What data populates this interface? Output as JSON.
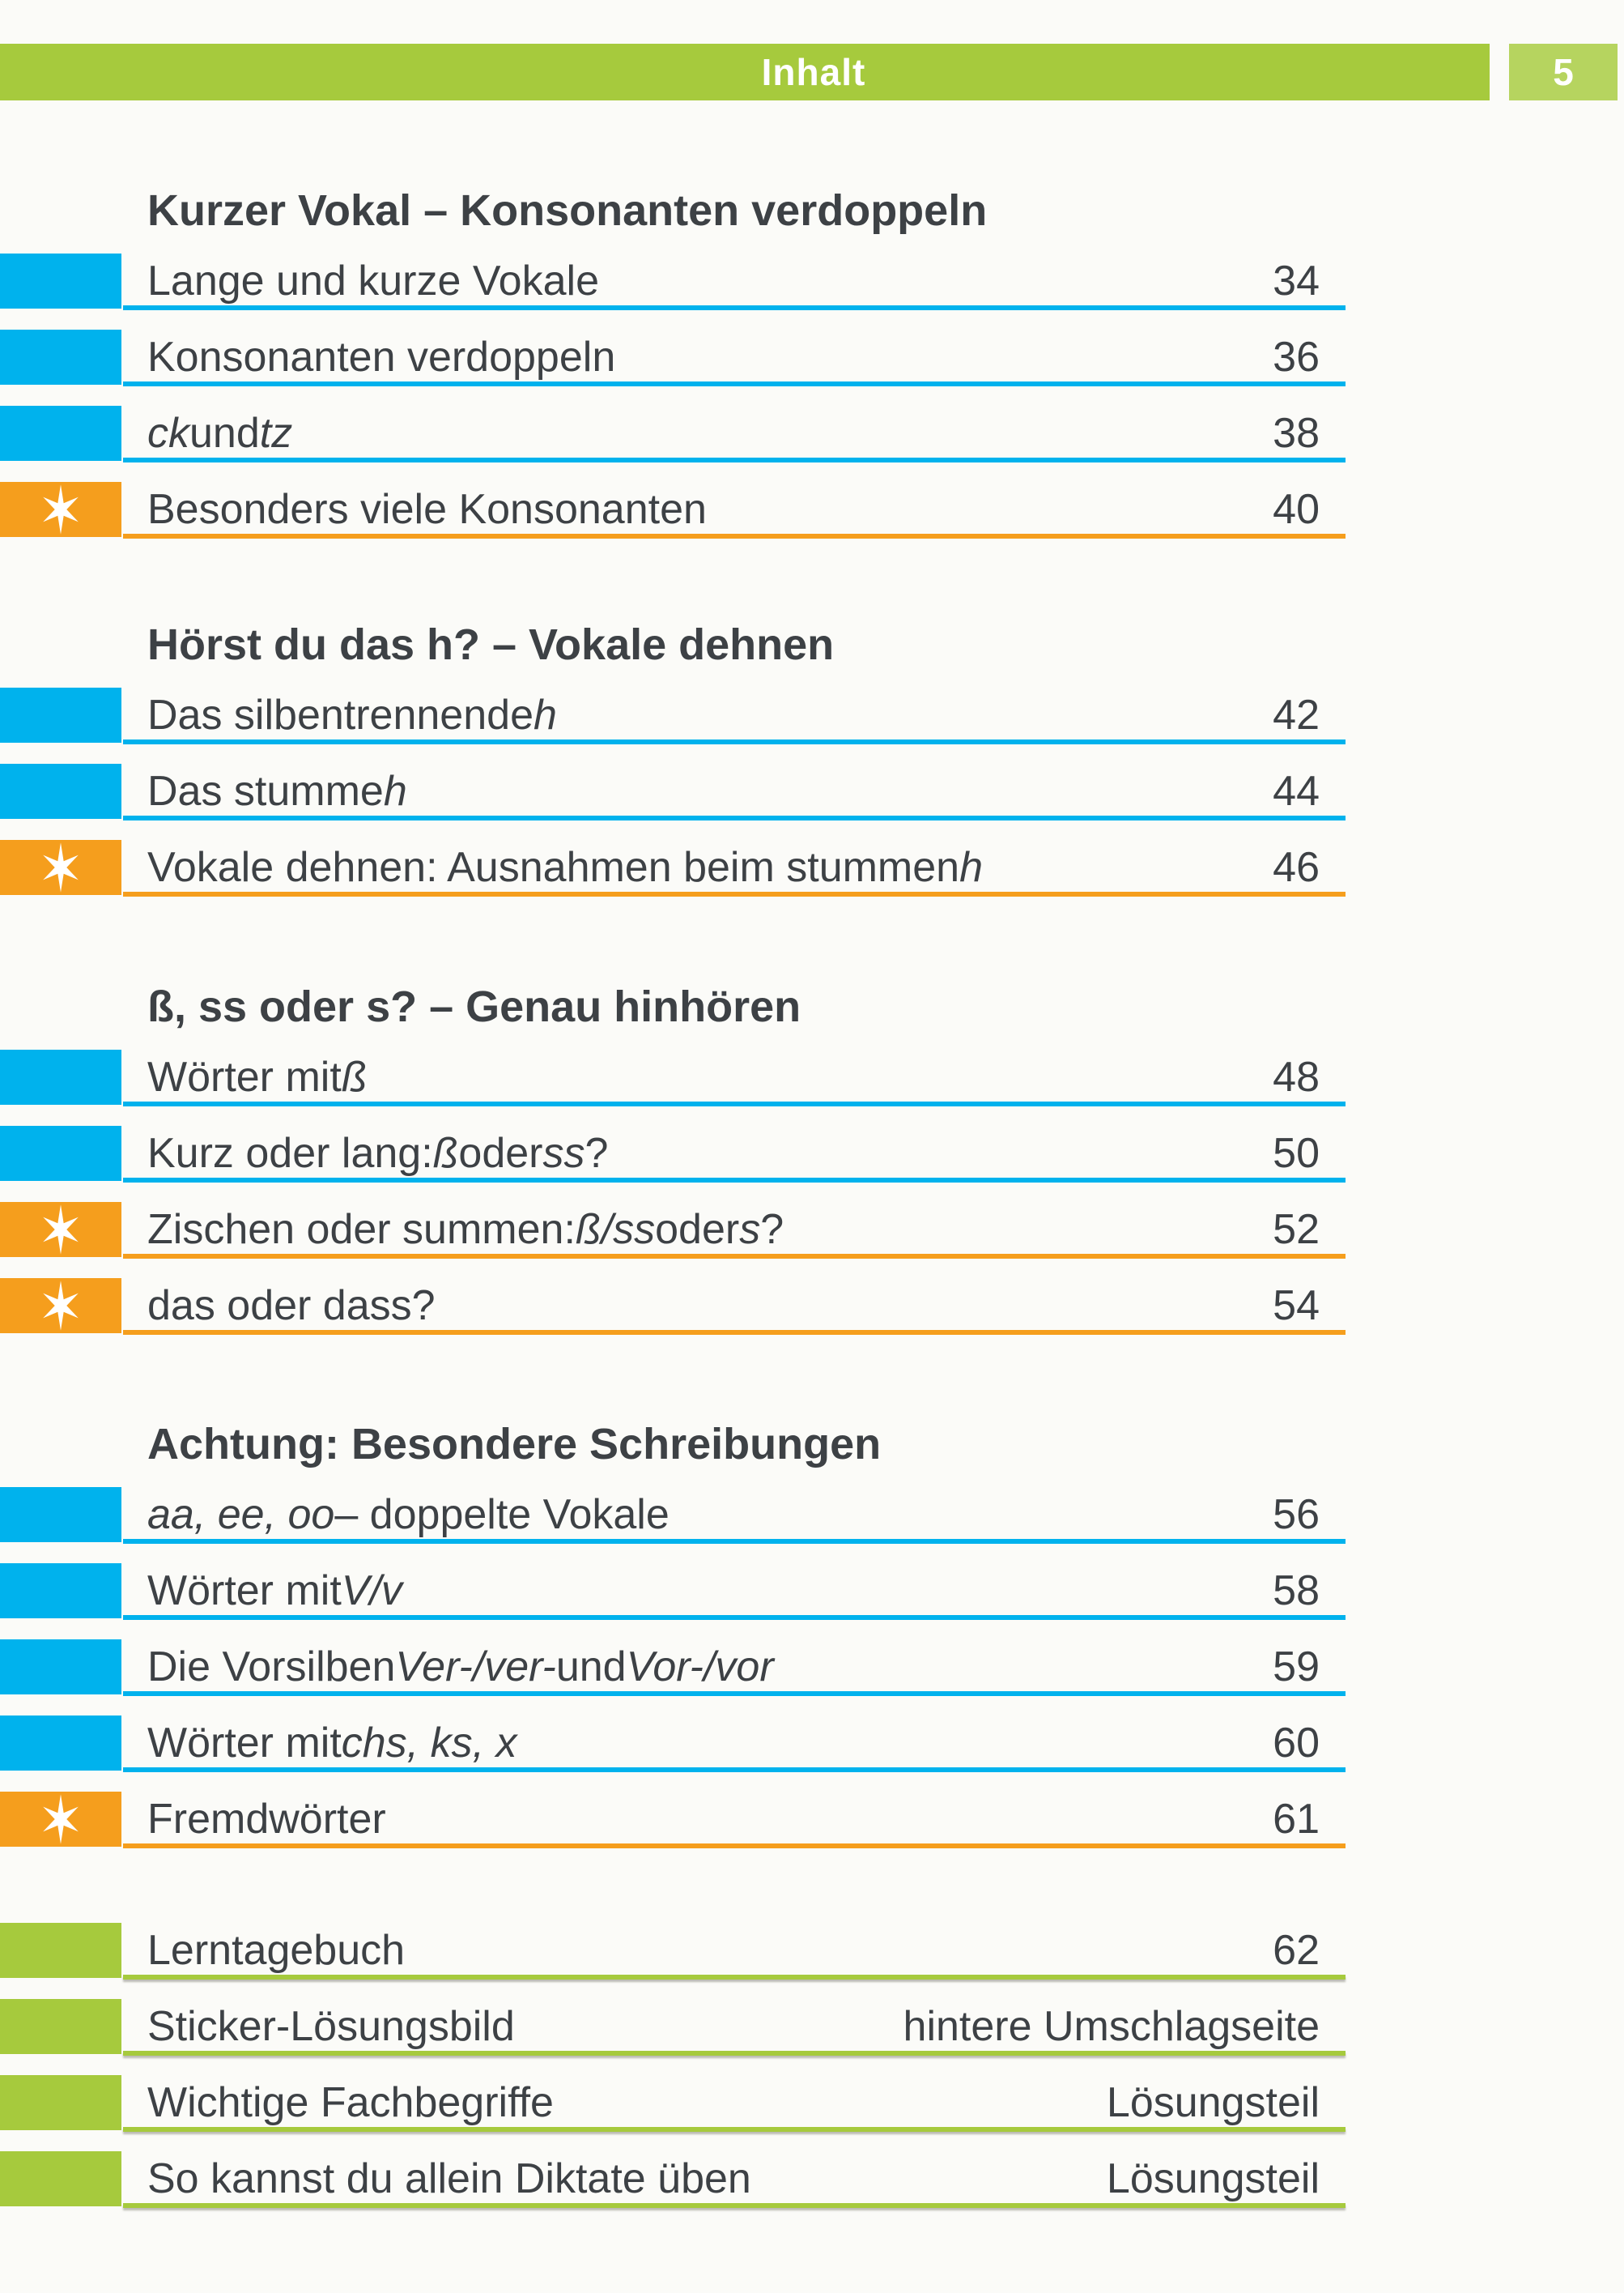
{
  "header": {
    "title": "Inhalt",
    "page_number": "5"
  },
  "colors": {
    "green": "#a6ca3d",
    "green_badge": "#b6d45f",
    "cyan": "#00b2ed",
    "orange": "#f59e1d",
    "text": "#3d4145"
  },
  "sections": [
    {
      "heading": "Kurzer Vokal – Konsonanten verdoppeln",
      "rows": [
        {
          "marker": "cyan",
          "segments": [
            {
              "text": "Lange und kurze Vokale"
            }
          ],
          "value": "34"
        },
        {
          "marker": "cyan",
          "segments": [
            {
              "text": "Konsonanten verdoppeln"
            }
          ],
          "value": "36"
        },
        {
          "marker": "cyan",
          "segments": [
            {
              "text": "ck",
              "italic": true
            },
            {
              "text": " und "
            },
            {
              "text": "tz",
              "italic": true
            }
          ],
          "value": "38"
        },
        {
          "marker": "star",
          "segments": [
            {
              "text": "Besonders viele Konsonanten"
            }
          ],
          "value": "40"
        }
      ]
    },
    {
      "heading": "Hörst du das h? – Vokale dehnen",
      "rows": [
        {
          "marker": "cyan",
          "segments": [
            {
              "text": "Das silbentrennende "
            },
            {
              "text": "h",
              "italic": true
            }
          ],
          "value": "42"
        },
        {
          "marker": "cyan",
          "segments": [
            {
              "text": "Das stumme "
            },
            {
              "text": "h",
              "italic": true
            }
          ],
          "value": "44"
        },
        {
          "marker": "star",
          "segments": [
            {
              "text": "Vokale dehnen: Ausnahmen beim stummen "
            },
            {
              "text": "h",
              "italic": true
            }
          ],
          "value": "46"
        }
      ]
    },
    {
      "heading": "ß, ss oder s? – Genau hinhören",
      "rows": [
        {
          "marker": "cyan",
          "segments": [
            {
              "text": "Wörter mit "
            },
            {
              "text": "ß",
              "italic": true
            }
          ],
          "value": "48"
        },
        {
          "marker": "cyan",
          "segments": [
            {
              "text": "Kurz oder lang: "
            },
            {
              "text": "ß",
              "italic": true
            },
            {
              "text": " oder "
            },
            {
              "text": "ss",
              "italic": true
            },
            {
              "text": "?"
            }
          ],
          "value": "50"
        },
        {
          "marker": "star",
          "segments": [
            {
              "text": "Zischen oder summen: "
            },
            {
              "text": "ß/ss",
              "italic": true
            },
            {
              "text": " oder "
            },
            {
              "text": "s",
              "italic": true
            },
            {
              "text": "?"
            }
          ],
          "value": "52"
        },
        {
          "marker": "star",
          "segments": [
            {
              "text": "das oder dass?"
            }
          ],
          "value": "54"
        }
      ]
    },
    {
      "heading": "Achtung: Besondere Schreibungen",
      "rows": [
        {
          "marker": "cyan",
          "segments": [
            {
              "text": "aa, ee, oo",
              "italic": true
            },
            {
              "text": " – doppelte Vokale"
            }
          ],
          "value": "56"
        },
        {
          "marker": "cyan",
          "segments": [
            {
              "text": "Wörter mit "
            },
            {
              "text": "V/v",
              "italic": true
            }
          ],
          "value": "58"
        },
        {
          "marker": "cyan",
          "segments": [
            {
              "text": "Die Vorsilben "
            },
            {
              "text": "Ver-/ver-",
              "italic": true
            },
            {
              "text": " und "
            },
            {
              "text": "Vor-/vor",
              "italic": true
            }
          ],
          "value": "59"
        },
        {
          "marker": "cyan",
          "segments": [
            {
              "text": "Wörter mit "
            },
            {
              "text": "chs, ks, x",
              "italic": true
            }
          ],
          "value": "60"
        },
        {
          "marker": "star",
          "segments": [
            {
              "text": "Fremdwörter"
            }
          ],
          "value": "61"
        }
      ]
    },
    {
      "heading": null,
      "rows": [
        {
          "marker": "green",
          "segments": [
            {
              "text": "Lerntagebuch"
            }
          ],
          "value": "62"
        },
        {
          "marker": "green",
          "segments": [
            {
              "text": "Sticker-Lösungsbild"
            }
          ],
          "value": "hintere Umschlagseite"
        },
        {
          "marker": "green",
          "segments": [
            {
              "text": "Wichtige Fachbegriffe"
            }
          ],
          "value": "Lösungsteil"
        },
        {
          "marker": "green",
          "segments": [
            {
              "text": "So kannst du allein Diktate üben"
            }
          ],
          "value": "Lösungsteil"
        }
      ]
    }
  ]
}
